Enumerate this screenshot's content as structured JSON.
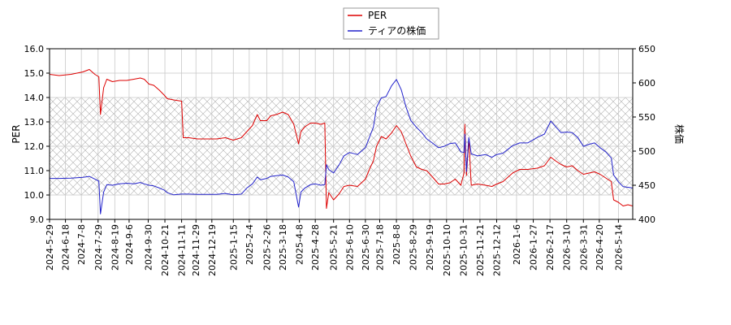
{
  "chart_data": {
    "type": "line",
    "title": "",
    "xlabel": "",
    "ylabel_left": "PER",
    "ylabel_right": "株価",
    "ylim_left": [
      9.0,
      16.0
    ],
    "ylim_right": [
      400,
      650
    ],
    "yticks_left": [
      "9.0",
      "10.0",
      "11.0",
      "12.0",
      "13.0",
      "14.0",
      "15.0",
      "16.0"
    ],
    "yticks_right": [
      "400",
      "450",
      "500",
      "550",
      "600",
      "650"
    ],
    "xlim": [
      "2024-05-29",
      "2026-06-01"
    ],
    "x_ticks": [
      "2024-5-29",
      "2024-6-18",
      "2024-7-8",
      "2024-7-29",
      "2024-8-19",
      "2024-9-6",
      "2024-9-30",
      "2024-10-21",
      "2024-11-11",
      "2024-11-29",
      "2024-12-19",
      "2025-1-15",
      "2025-2-4",
      "2025-2-26",
      "2025-3-18",
      "2025-4-8",
      "2025-4-28",
      "2025-5-21",
      "2025-6-10",
      "2025-6-30",
      "2025-7-18",
      "2025-8-8",
      "2025-8-29",
      "2025-9-19",
      "2025-10-10",
      "2025-10-31",
      "2025-11-21",
      "2025-12-12",
      "2026-1-6",
      "2026-1-27",
      "2026-2-17",
      "2026-3-10",
      "2026-3-31",
      "2026-4-20",
      "2026-5-14"
    ],
    "hatched_band": {
      "axis": "left",
      "from": 10.0,
      "to": 14.0
    },
    "grid": true,
    "legend_position": "top-center",
    "series": [
      {
        "name": "PER",
        "axis": "left",
        "color": "#dd0000",
        "points": [
          [
            "2024-05-29",
            14.95
          ],
          [
            "2024-06-10",
            14.9
          ],
          [
            "2024-06-25",
            14.95
          ],
          [
            "2024-07-10",
            15.05
          ],
          [
            "2024-07-18",
            15.15
          ],
          [
            "2024-07-25",
            14.95
          ],
          [
            "2024-07-30",
            14.85
          ],
          [
            "2024-08-01",
            13.3
          ],
          [
            "2024-08-05",
            14.4
          ],
          [
            "2024-08-09",
            14.75
          ],
          [
            "2024-08-16",
            14.65
          ],
          [
            "2024-08-25",
            14.7
          ],
          [
            "2024-09-03",
            14.7
          ],
          [
            "2024-09-12",
            14.75
          ],
          [
            "2024-09-20",
            14.8
          ],
          [
            "2024-09-25",
            14.75
          ],
          [
            "2024-10-01",
            14.55
          ],
          [
            "2024-10-07",
            14.5
          ],
          [
            "2024-10-14",
            14.3
          ],
          [
            "2024-10-20",
            14.1
          ],
          [
            "2024-10-24",
            13.95
          ],
          [
            "2024-11-01",
            13.9
          ],
          [
            "2024-11-11",
            13.85
          ],
          [
            "2024-11-13",
            12.35
          ],
          [
            "2024-11-20",
            12.35
          ],
          [
            "2024-12-01",
            12.3
          ],
          [
            "2024-12-15",
            12.3
          ],
          [
            "2024-12-25",
            12.3
          ],
          [
            "2025-01-05",
            12.35
          ],
          [
            "2025-01-15",
            12.25
          ],
          [
            "2025-01-25",
            12.35
          ],
          [
            "2025-02-01",
            12.6
          ],
          [
            "2025-02-08",
            12.85
          ],
          [
            "2025-02-14",
            13.3
          ],
          [
            "2025-02-18",
            13.05
          ],
          [
            "2025-02-26",
            13.05
          ],
          [
            "2025-03-03",
            13.25
          ],
          [
            "2025-03-10",
            13.3
          ],
          [
            "2025-03-18",
            13.4
          ],
          [
            "2025-03-25",
            13.3
          ],
          [
            "2025-04-01",
            12.9
          ],
          [
            "2025-04-07",
            12.1
          ],
          [
            "2025-04-10",
            12.6
          ],
          [
            "2025-04-15",
            12.8
          ],
          [
            "2025-04-22",
            12.95
          ],
          [
            "2025-04-28",
            12.95
          ],
          [
            "2025-05-05",
            12.9
          ],
          [
            "2025-05-10",
            12.95
          ],
          [
            "2025-05-12",
            9.45
          ],
          [
            "2025-05-15",
            10.1
          ],
          [
            "2025-05-21",
            9.8
          ],
          [
            "2025-05-28",
            10.05
          ],
          [
            "2025-06-03",
            10.35
          ],
          [
            "2025-06-10",
            10.4
          ],
          [
            "2025-06-20",
            10.35
          ],
          [
            "2025-06-30",
            10.65
          ],
          [
            "2025-07-05",
            11.05
          ],
          [
            "2025-07-10",
            11.4
          ],
          [
            "2025-07-14",
            12.0
          ],
          [
            "2025-07-20",
            12.4
          ],
          [
            "2025-07-26",
            12.3
          ],
          [
            "2025-08-02",
            12.55
          ],
          [
            "2025-08-08",
            12.85
          ],
          [
            "2025-08-14",
            12.6
          ],
          [
            "2025-08-20",
            12.1
          ],
          [
            "2025-08-26",
            11.6
          ],
          [
            "2025-09-02",
            11.15
          ],
          [
            "2025-09-09",
            11.05
          ],
          [
            "2025-09-15",
            11.0
          ],
          [
            "2025-09-22",
            10.75
          ],
          [
            "2025-09-30",
            10.45
          ],
          [
            "2025-10-07",
            10.45
          ],
          [
            "2025-10-14",
            10.5
          ],
          [
            "2025-10-21",
            10.65
          ],
          [
            "2025-10-28",
            10.4
          ],
          [
            "2025-11-01",
            10.9
          ],
          [
            "2025-11-02",
            12.9
          ],
          [
            "2025-11-04",
            10.8
          ],
          [
            "2025-11-07",
            12.3
          ],
          [
            "2025-11-10",
            10.4
          ],
          [
            "2025-11-18",
            10.45
          ],
          [
            "2025-11-28",
            10.4
          ],
          [
            "2025-12-06",
            10.35
          ],
          [
            "2025-12-12",
            10.45
          ],
          [
            "2025-12-20",
            10.55
          ],
          [
            "2026-01-01",
            10.9
          ],
          [
            "2026-01-10",
            11.05
          ],
          [
            "2026-01-20",
            11.05
          ],
          [
            "2026-02-01",
            11.1
          ],
          [
            "2026-02-10",
            11.2
          ],
          [
            "2026-02-18",
            11.55
          ],
          [
            "2026-02-24",
            11.4
          ],
          [
            "2026-03-03",
            11.25
          ],
          [
            "2026-03-10",
            11.15
          ],
          [
            "2026-03-17",
            11.2
          ],
          [
            "2026-03-24",
            11.0
          ],
          [
            "2026-03-31",
            10.85
          ],
          [
            "2026-04-07",
            10.9
          ],
          [
            "2026-04-14",
            10.95
          ],
          [
            "2026-04-21",
            10.85
          ],
          [
            "2026-04-28",
            10.7
          ],
          [
            "2026-05-05",
            10.55
          ],
          [
            "2026-05-08",
            9.8
          ],
          [
            "2026-05-14",
            9.7
          ],
          [
            "2026-05-20",
            9.55
          ],
          [
            "2026-05-26",
            9.6
          ],
          [
            "2026-06-01",
            9.55
          ]
        ]
      },
      {
        "name": "ティアの株価",
        "axis": "right",
        "color": "#2222cc",
        "points": [
          [
            "2024-05-29",
            460
          ],
          [
            "2024-06-10",
            460
          ],
          [
            "2024-06-25",
            460.5
          ],
          [
            "2024-07-10",
            461.5
          ],
          [
            "2024-07-18",
            463
          ],
          [
            "2024-07-25",
            459
          ],
          [
            "2024-07-30",
            456
          ],
          [
            "2024-08-01",
            408
          ],
          [
            "2024-08-05",
            440
          ],
          [
            "2024-08-09",
            451
          ],
          [
            "2024-08-16",
            450
          ],
          [
            "2024-08-25",
            452
          ],
          [
            "2024-09-03",
            453
          ],
          [
            "2024-09-12",
            452
          ],
          [
            "2024-09-20",
            454
          ],
          [
            "2024-09-25",
            452
          ],
          [
            "2024-10-01",
            450
          ],
          [
            "2024-10-07",
            449
          ],
          [
            "2024-10-14",
            446
          ],
          [
            "2024-10-20",
            443
          ],
          [
            "2024-10-24",
            439
          ],
          [
            "2024-11-01",
            436
          ],
          [
            "2024-11-11",
            437
          ],
          [
            "2024-11-13",
            437
          ],
          [
            "2024-11-20",
            437
          ],
          [
            "2024-12-01",
            436.5
          ],
          [
            "2024-12-15",
            436.5
          ],
          [
            "2024-12-25",
            436.5
          ],
          [
            "2025-01-05",
            438
          ],
          [
            "2025-01-15",
            436
          ],
          [
            "2025-01-25",
            437
          ],
          [
            "2025-02-01",
            446
          ],
          [
            "2025-02-08",
            452
          ],
          [
            "2025-02-14",
            462
          ],
          [
            "2025-02-18",
            458
          ],
          [
            "2025-02-26",
            460
          ],
          [
            "2025-03-03",
            463
          ],
          [
            "2025-03-10",
            464
          ],
          [
            "2025-03-18",
            465
          ],
          [
            "2025-03-25",
            462
          ],
          [
            "2025-04-01",
            455
          ],
          [
            "2025-04-07",
            418
          ],
          [
            "2025-04-10",
            440
          ],
          [
            "2025-04-15",
            446
          ],
          [
            "2025-04-22",
            451
          ],
          [
            "2025-04-28",
            452
          ],
          [
            "2025-05-05",
            450
          ],
          [
            "2025-05-10",
            451
          ],
          [
            "2025-05-12",
            480
          ],
          [
            "2025-05-15",
            473
          ],
          [
            "2025-05-21",
            468
          ],
          [
            "2025-05-28",
            480
          ],
          [
            "2025-06-03",
            493
          ],
          [
            "2025-06-10",
            498
          ],
          [
            "2025-06-20",
            495
          ],
          [
            "2025-06-30",
            505
          ],
          [
            "2025-07-05",
            520
          ],
          [
            "2025-07-10",
            535
          ],
          [
            "2025-07-14",
            564
          ],
          [
            "2025-07-20",
            578
          ],
          [
            "2025-07-26",
            580
          ],
          [
            "2025-08-02",
            596
          ],
          [
            "2025-08-08",
            605
          ],
          [
            "2025-08-14",
            590
          ],
          [
            "2025-08-20",
            565
          ],
          [
            "2025-08-26",
            545
          ],
          [
            "2025-09-02",
            535
          ],
          [
            "2025-09-09",
            527
          ],
          [
            "2025-09-15",
            518
          ],
          [
            "2025-09-22",
            512
          ],
          [
            "2025-09-30",
            505
          ],
          [
            "2025-10-07",
            507
          ],
          [
            "2025-10-14",
            511
          ],
          [
            "2025-10-21",
            512
          ],
          [
            "2025-10-28",
            499
          ],
          [
            "2025-11-01",
            498
          ],
          [
            "2025-11-02",
            525
          ],
          [
            "2025-11-04",
            470
          ],
          [
            "2025-11-07",
            520
          ],
          [
            "2025-11-10",
            496
          ],
          [
            "2025-11-18",
            493
          ],
          [
            "2025-11-28",
            495
          ],
          [
            "2025-12-06",
            491
          ],
          [
            "2025-12-12",
            495
          ],
          [
            "2025-12-20",
            497
          ],
          [
            "2026-01-01",
            508
          ],
          [
            "2026-01-10",
            512
          ],
          [
            "2026-01-20",
            512
          ],
          [
            "2026-02-01",
            520
          ],
          [
            "2026-02-10",
            525
          ],
          [
            "2026-02-18",
            544
          ],
          [
            "2026-02-24",
            536
          ],
          [
            "2026-03-03",
            527
          ],
          [
            "2026-03-10",
            528
          ],
          [
            "2026-03-17",
            527
          ],
          [
            "2026-03-24",
            520
          ],
          [
            "2026-03-31",
            507
          ],
          [
            "2026-04-07",
            510
          ],
          [
            "2026-04-14",
            512
          ],
          [
            "2026-04-21",
            505
          ],
          [
            "2026-04-28",
            499
          ],
          [
            "2026-05-05",
            490
          ],
          [
            "2026-05-08",
            465
          ],
          [
            "2026-05-14",
            455
          ],
          [
            "2026-05-20",
            448
          ],
          [
            "2026-05-26",
            447
          ],
          [
            "2026-06-01",
            446
          ]
        ]
      }
    ]
  }
}
